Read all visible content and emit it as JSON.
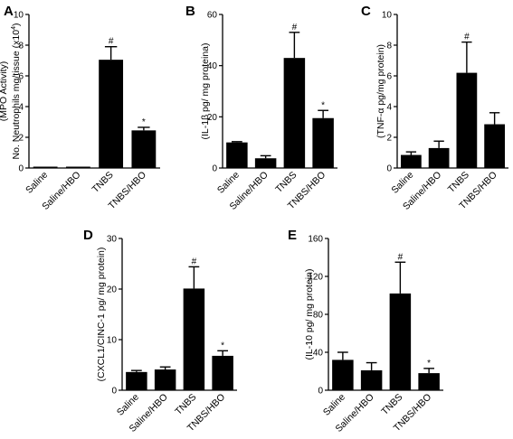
{
  "chart_data": [
    {
      "type": "bar",
      "panel": "A",
      "ylabel_lines": [
        "(MPO Activity)",
        "No. Neutrophils  mg/tissue (x10",
        "4",
        ")"
      ],
      "categories": [
        "Saline",
        "Saline/HBO",
        "TNBS",
        "TNBS/HBO"
      ],
      "values": [
        0.05,
        0.05,
        7.05,
        2.45
      ],
      "errors": [
        0.0,
        0.0,
        0.85,
        0.2
      ],
      "markers": [
        "",
        "",
        "#",
        "*"
      ],
      "yticks": [
        0,
        2,
        4,
        6,
        8,
        10
      ],
      "ylim": [
        0,
        10
      ]
    },
    {
      "type": "bar",
      "panel": "B",
      "ylabel_lines": [
        "(IL-1β pg/ mg proteina)"
      ],
      "categories": [
        "Saline",
        "Saline/HBO",
        "TNBS",
        "TNBS/HBO"
      ],
      "values": [
        10,
        3.8,
        43,
        19.5
      ],
      "errors": [
        0.3,
        1.0,
        10,
        3
      ],
      "markers": [
        "",
        "",
        "#",
        "*"
      ],
      "yticks": [
        0,
        20,
        40,
        60
      ],
      "ylim": [
        0,
        60
      ]
    },
    {
      "type": "bar",
      "panel": "C",
      "ylabel_lines": [
        "(TNF-α  pg/mg protein)"
      ],
      "categories": [
        "Saline",
        "Saline/HBO",
        "TNBS",
        "TNBS/HBO"
      ],
      "values": [
        0.85,
        1.3,
        6.2,
        2.85
      ],
      "errors": [
        0.2,
        0.45,
        2.0,
        0.75
      ],
      "markers": [
        "",
        "",
        "#",
        ""
      ],
      "yticks": [
        0,
        2,
        4,
        6,
        8,
        10
      ],
      "ylim": [
        0,
        10
      ]
    },
    {
      "type": "bar",
      "panel": "D",
      "ylabel_lines": [
        "(CXCL1/CINC-1 pg/ mg protein)"
      ],
      "categories": [
        "Saline",
        "Saline/HBO",
        "TNBS",
        "TNBS/HBO"
      ],
      "values": [
        3.6,
        4.1,
        20.1,
        6.8
      ],
      "errors": [
        0.3,
        0.5,
        4.3,
        1.0
      ],
      "markers": [
        "",
        "",
        "#",
        "*"
      ],
      "yticks": [
        0,
        10,
        20,
        30
      ],
      "ylim": [
        0,
        30
      ]
    },
    {
      "type": "bar",
      "panel": "E",
      "ylabel_lines": [
        "(IL-10 pg/ mg protein)"
      ],
      "categories": [
        "Saline",
        "Saline/HBO",
        "TNBS",
        "TNBS/HBO"
      ],
      "values": [
        32,
        21,
        102,
        18
      ],
      "errors": [
        8,
        8,
        33,
        5
      ],
      "markers": [
        "",
        "",
        "#",
        "*"
      ],
      "yticks": [
        0,
        40,
        80,
        120,
        160
      ],
      "ylim": [
        0,
        160
      ]
    }
  ]
}
